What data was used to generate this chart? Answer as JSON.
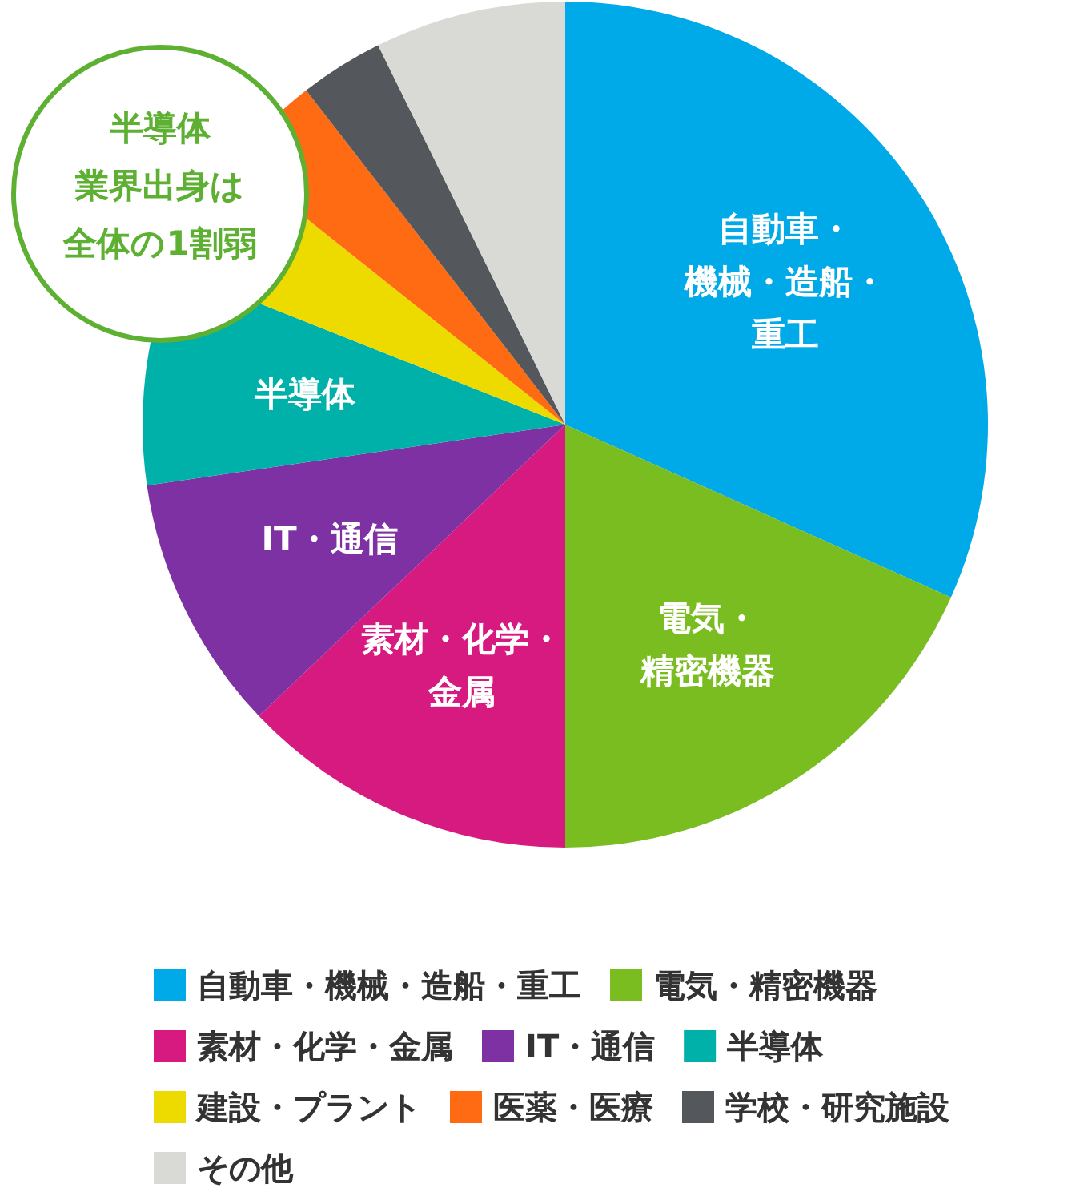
{
  "chart_data": {
    "type": "pie",
    "categories": [
      "自動車・機械・造船・重工",
      "電気・精密機器",
      "素材・化学・金属",
      "IT・通信",
      "半導体",
      "建設・プラント",
      "医薬・医療",
      "学校・研究施設",
      "その他"
    ],
    "values": [
      31.7,
      18.3,
      12.9,
      9.8,
      8.3,
      4.7,
      3.8,
      3.2,
      7.3
    ],
    "colors": [
      "#00a9e7",
      "#7abd21",
      "#d71a80",
      "#7d31a3",
      "#00b1a9",
      "#eddb00",
      "#ff6b12",
      "#54575c",
      "#d9d9d5"
    ],
    "legend": "bottom",
    "annotations": [
      "半導体業界出身は全体の1割弱"
    ]
  }
}
